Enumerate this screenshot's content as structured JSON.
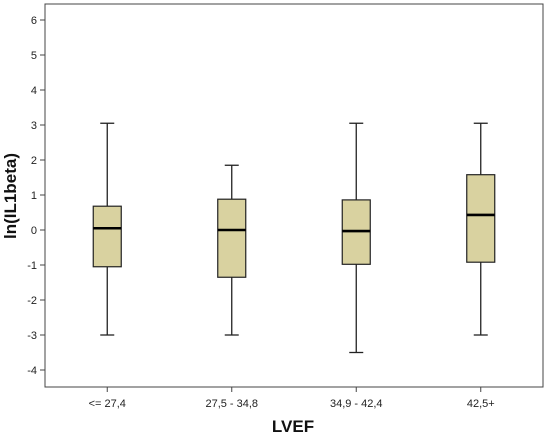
{
  "chart_data": {
    "type": "boxplot",
    "title": "",
    "xlabel": "LVEF",
    "ylabel": "ln(IL1beta)",
    "ylim": [
      -4.5,
      6.5
    ],
    "yticks": [
      -4,
      -3,
      -2,
      -1,
      0,
      1,
      2,
      3,
      4,
      5,
      6
    ],
    "grid": false,
    "box_color": "#d9d2a0",
    "categories": [
      "<= 27,4",
      "27,5 - 34,8",
      "34,9 - 42,4",
      "42,5+"
    ],
    "boxes": [
      {
        "category": "<= 27,4",
        "min": -3.0,
        "q1": -1.05,
        "median": 0.05,
        "q3": 0.68,
        "max": 3.05
      },
      {
        "category": "27,5 - 34,8",
        "min": -3.0,
        "q1": -1.35,
        "median": 0.0,
        "q3": 0.88,
        "max": 1.85
      },
      {
        "category": "34,9 - 42,4",
        "min": -3.5,
        "q1": -0.98,
        "median": -0.03,
        "q3": 0.86,
        "max": 3.05
      },
      {
        "category": "42,5+",
        "min": -3.0,
        "q1": -0.92,
        "median": 0.43,
        "q3": 1.58,
        "max": 3.05
      }
    ]
  }
}
